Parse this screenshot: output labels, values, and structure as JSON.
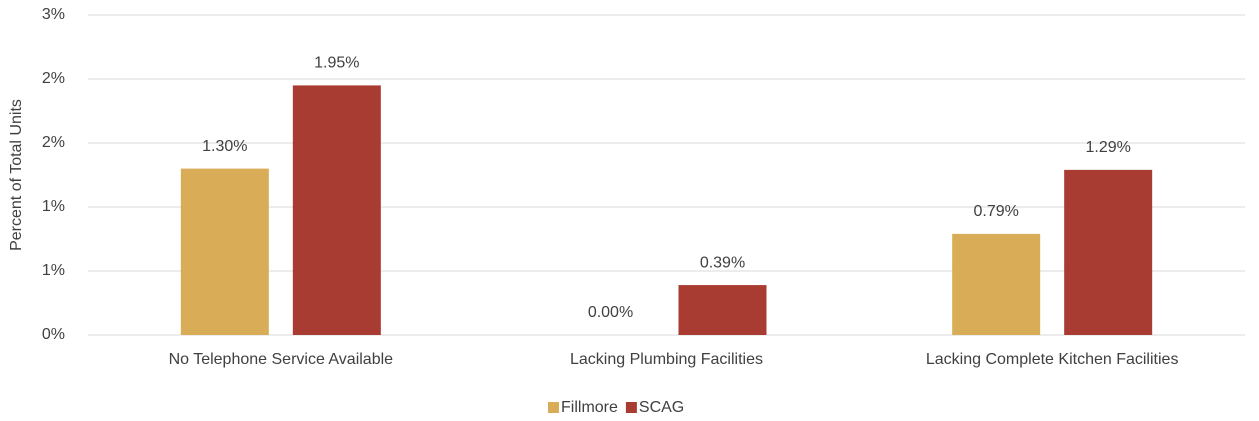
{
  "chart_data": {
    "type": "bar",
    "y_axis_label": "Percent of Total Units",
    "categories": [
      "No Telephone Service Available",
      "Lacking Plumbing Facilities",
      "Lacking Complete Kitchen Facilities"
    ],
    "series": [
      {
        "name": "Fillmore",
        "color": "#d9ad57",
        "values": [
          1.3,
          0.0,
          0.79
        ],
        "value_labels": [
          "1.30%",
          "0.00%",
          "0.79%"
        ]
      },
      {
        "name": "SCAG",
        "color": "#a93c32",
        "values": [
          1.95,
          0.39,
          1.29
        ],
        "value_labels": [
          "1.95%",
          "0.39%",
          "1.29%"
        ]
      }
    ],
    "ylim": [
      0,
      2.5
    ],
    "yticks": [
      {
        "value": 0,
        "label": "0%"
      },
      {
        "value": 0.5,
        "label": "1%"
      },
      {
        "value": 1,
        "label": "1%"
      },
      {
        "value": 1.5,
        "label": "2%"
      },
      {
        "value": 2,
        "label": "2%"
      },
      {
        "value": 2.5,
        "label": "3%"
      }
    ],
    "grid": true,
    "legend": "bottom"
  }
}
